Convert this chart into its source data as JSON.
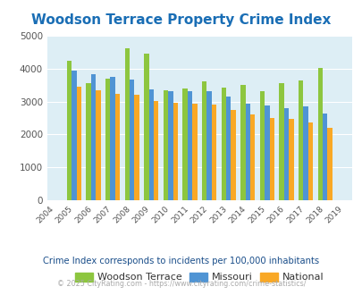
{
  "title": "Woodson Terrace Property Crime Index",
  "years": [
    2004,
    2005,
    2006,
    2007,
    2008,
    2009,
    2010,
    2011,
    2012,
    2013,
    2014,
    2015,
    2016,
    2017,
    2018,
    2019
  ],
  "woodson_terrace": [
    null,
    4230,
    3560,
    3680,
    4600,
    4450,
    3330,
    3380,
    3600,
    3420,
    3490,
    3310,
    3550,
    3640,
    4010,
    null
  ],
  "missouri": [
    null,
    3940,
    3830,
    3740,
    3660,
    3360,
    3310,
    3310,
    3320,
    3140,
    2920,
    2880,
    2800,
    2850,
    2640,
    null
  ],
  "national": [
    null,
    3440,
    3330,
    3230,
    3200,
    3020,
    2960,
    2930,
    2900,
    2730,
    2600,
    2490,
    2470,
    2370,
    2210,
    null
  ],
  "colors": {
    "woodson_terrace": "#8dc63f",
    "missouri": "#4f94d4",
    "national": "#f9a825"
  },
  "ylim": [
    0,
    5000
  ],
  "yticks": [
    0,
    1000,
    2000,
    3000,
    4000,
    5000
  ],
  "plot_bg": "#ddeef5",
  "title_color": "#1a6eb5",
  "title_fontsize": 11,
  "legend_labels": [
    "Woodson Terrace",
    "Missouri",
    "National"
  ],
  "subtitle": "Crime Index corresponds to incidents per 100,000 inhabitants",
  "footer": "© 2025 CityRating.com - https://www.cityrating.com/crime-statistics/",
  "subtitle_color": "#1a4e8a",
  "footer_color": "#aaaaaa"
}
